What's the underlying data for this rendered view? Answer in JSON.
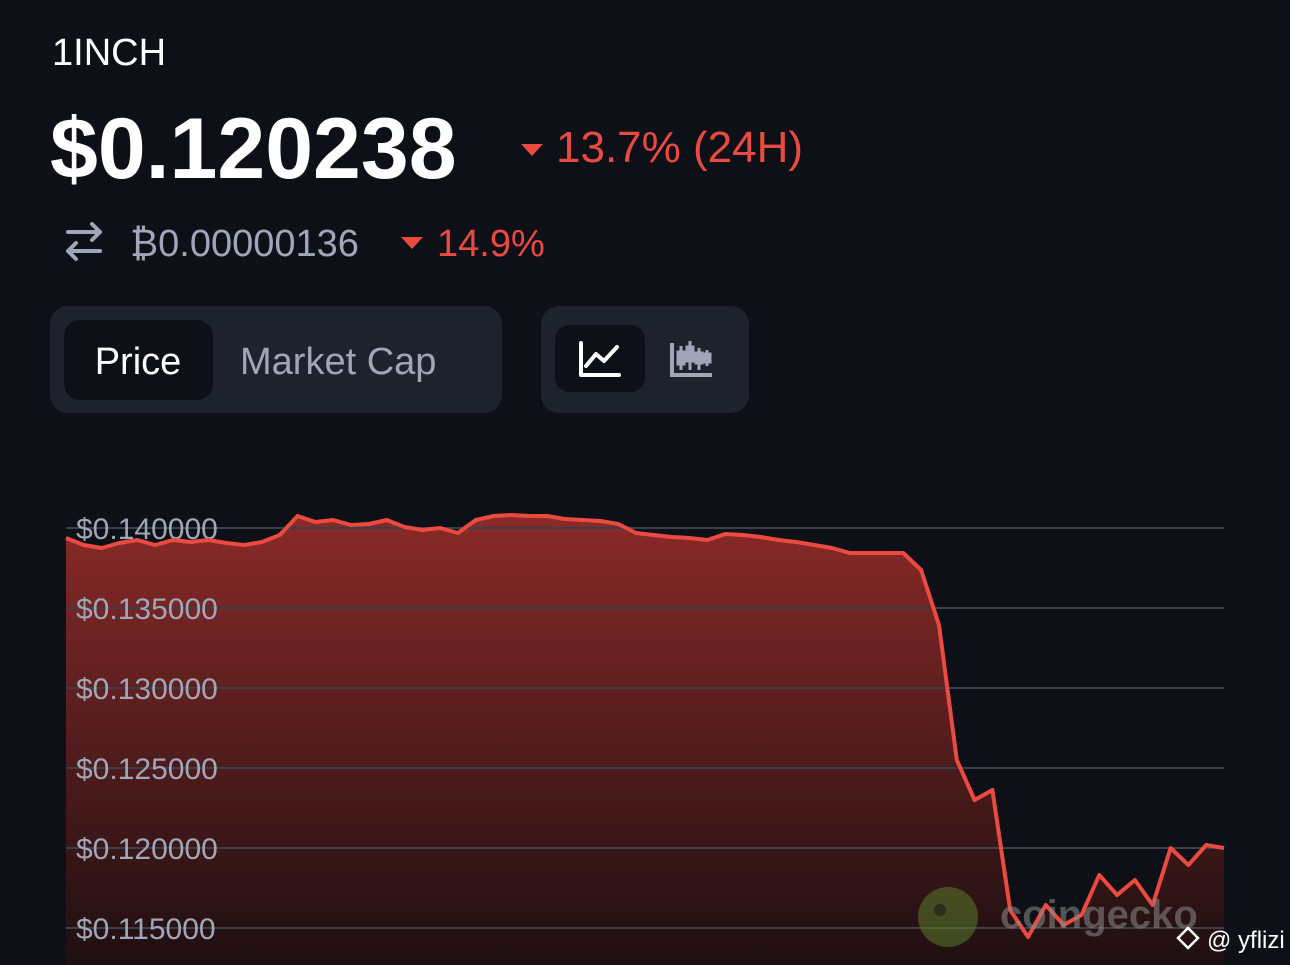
{
  "header": {
    "symbol": "1INCH",
    "price": "$0.120238",
    "change_24h": "13.7% (24H)",
    "btc_price": "₿0.00000136",
    "btc_change": "14.9%"
  },
  "tabs": {
    "metric": [
      "Price",
      "Market Cap"
    ]
  },
  "watermark": {
    "brand": "coingecko",
    "handle": "@ yflizi"
  },
  "chart_data": {
    "type": "area",
    "color": "#ea4a3f",
    "values": [
      0.139375,
      0.138938,
      0.13875,
      0.139063,
      0.13925,
      0.138938,
      0.13925,
      0.139125,
      0.13925,
      0.139063,
      0.138938,
      0.139125,
      0.139563,
      0.14075,
      0.140375,
      0.1405,
      0.140188,
      0.14025,
      0.1405,
      0.140063,
      0.139875,
      0.14,
      0.139688,
      0.1405,
      0.14075,
      0.140813,
      0.14075,
      0.14075,
      0.140563,
      0.1405,
      0.140438,
      0.14025,
      0.139688,
      0.139563,
      0.139438,
      0.139375,
      0.13925,
      0.139625,
      0.139563,
      0.139438,
      0.13925,
      0.139125,
      0.138938,
      0.13875,
      0.138438,
      0.138438,
      0.138438,
      0.138438,
      0.137375,
      0.133938,
      0.1255,
      0.123,
      0.123625,
      0.116125,
      0.114438,
      0.116438,
      0.115188,
      0.115813,
      0.118313,
      0.117063,
      0.118,
      0.116438,
      0.12,
      0.118938,
      0.120188,
      0.12
    ],
    "ylim": [
      0.1127,
      0.1414
    ],
    "yticks": [
      {
        "value": 0.14,
        "label": "$0.140000"
      },
      {
        "value": 0.135,
        "label": "$0.135000"
      },
      {
        "value": 0.13,
        "label": "$0.130000"
      },
      {
        "value": 0.125,
        "label": "$0.125000"
      },
      {
        "value": 0.12,
        "label": "$0.120000"
      },
      {
        "value": 0.115,
        "label": "$0.115000"
      }
    ],
    "grid": true
  }
}
